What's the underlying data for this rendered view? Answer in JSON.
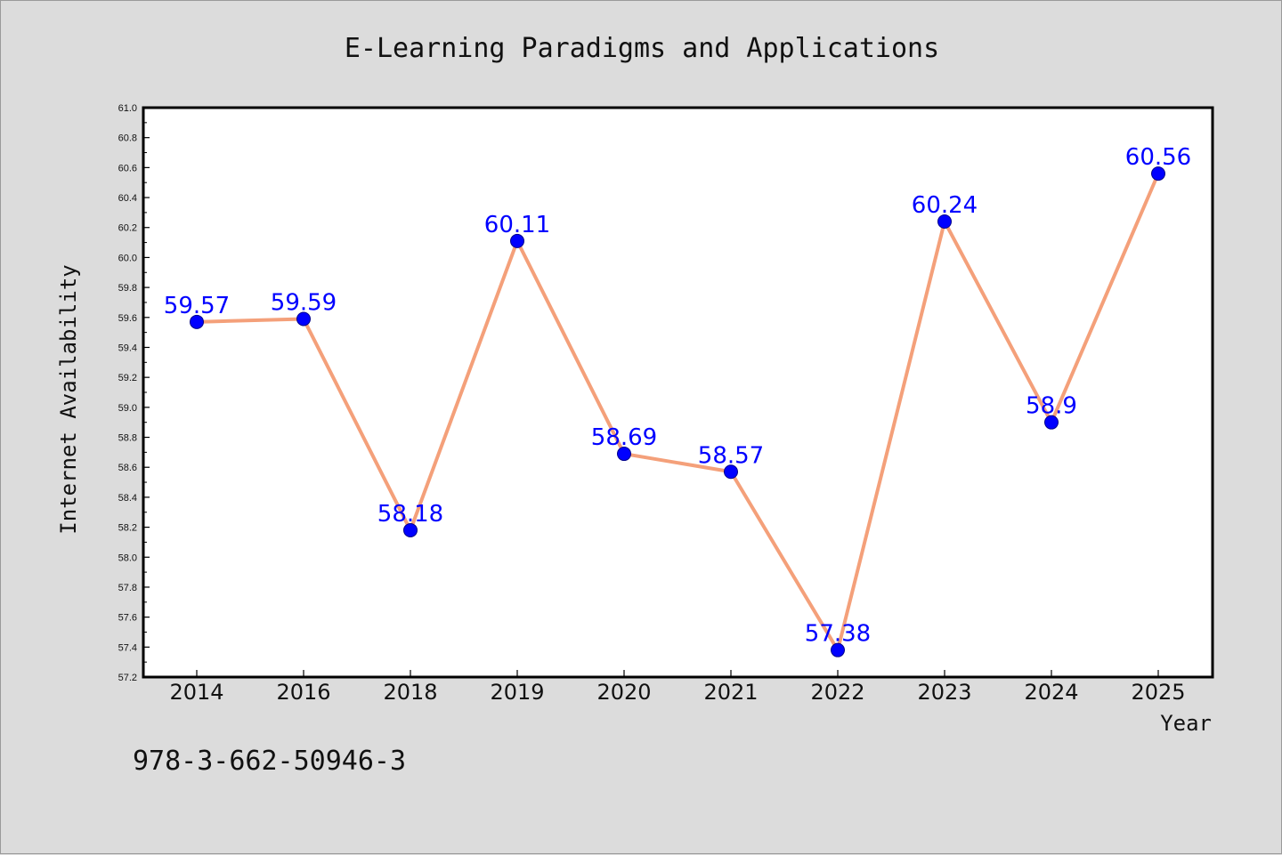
{
  "chart_data": {
    "type": "line",
    "title": "E-Learning Paradigms and Applications",
    "xlabel": "Year",
    "ylabel": "Internet Availability",
    "categories": [
      "2014",
      "2016",
      "2018",
      "2019",
      "2020",
      "2021",
      "2022",
      "2023",
      "2024",
      "2025"
    ],
    "series": [
      {
        "values": [
          59.57,
          59.59,
          58.18,
          60.11,
          58.69,
          58.57,
          57.38,
          60.24,
          58.9,
          60.56
        ]
      }
    ],
    "data_labels": [
      "59.57",
      "59.59",
      "58.18",
      "60.11",
      "58.69",
      "58.57",
      "57.38",
      "60.24",
      "58.9",
      "60.56"
    ],
    "ylim": [
      57.2,
      61.0
    ],
    "yticks": [
      "57.2",
      "57.4",
      "57.6",
      "57.8",
      "58.0",
      "58.2",
      "58.4",
      "58.6",
      "58.8",
      "59.0",
      "59.2",
      "59.4",
      "59.6",
      "59.8",
      "60.0",
      "60.2",
      "60.4",
      "60.6",
      "60.8",
      "61.0"
    ],
    "grid": false,
    "line_color": "#f4a07a",
    "marker_color": "#0000ff",
    "label_color": "#0000ff"
  },
  "footer": {
    "isbn": "978-3-662-50946-3"
  }
}
